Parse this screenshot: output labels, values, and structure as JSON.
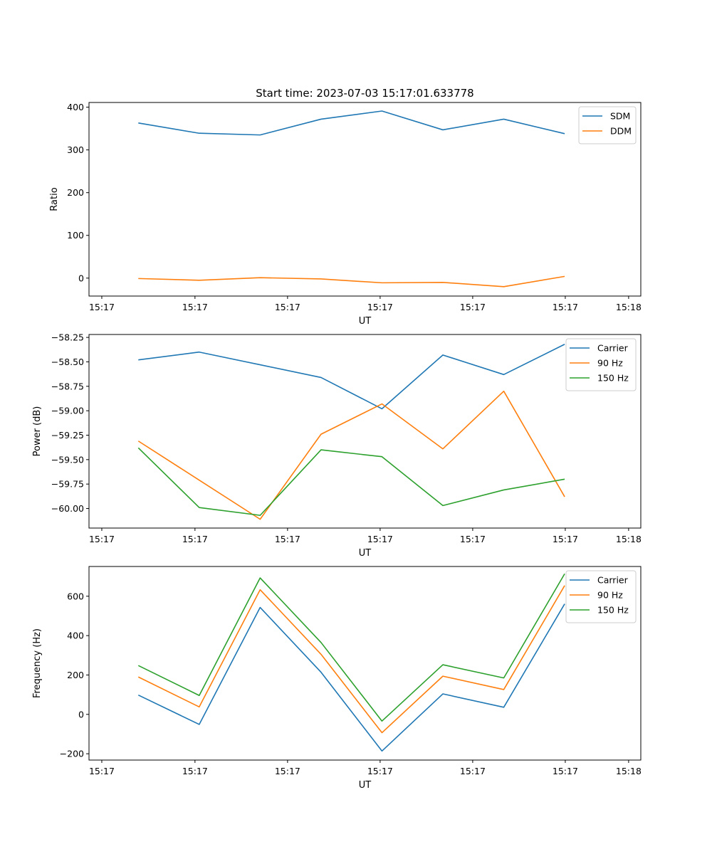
{
  "figure_title": "Start time: 2023-07-03 15:17:01.633778",
  "colors": {
    "c0": "#1f77b4",
    "c1": "#ff7f0e",
    "c2": "#2ca02c"
  },
  "chart_data": [
    {
      "type": "line",
      "title": "Start time: 2023-07-03 15:17:01.633778",
      "xlabel": "UT",
      "ylabel": "Ratio",
      "x_tick_labels": [
        "15:17",
        "15:17",
        "15:17",
        "15:17",
        "15:17",
        "15:17",
        "15:18"
      ],
      "x_index": [
        1,
        2,
        3,
        4,
        5,
        6,
        7,
        8
      ],
      "xlim": [
        0.19,
        9.25
      ],
      "ylim": [
        -42,
        411
      ],
      "yticks": [
        0,
        100,
        200,
        300,
        400
      ],
      "ytick_labels": [
        "0",
        "100",
        "200",
        "300",
        "400"
      ],
      "legend_position": "top-right",
      "series": [
        {
          "name": "SDM",
          "color": "#1f77b4",
          "values": [
            363,
            339,
            335,
            372,
            391,
            347,
            372,
            338
          ]
        },
        {
          "name": "DDM",
          "color": "#ff7f0e",
          "values": [
            -1,
            -5,
            1,
            -2,
            -11,
            -10,
            -20,
            4
          ]
        }
      ]
    },
    {
      "type": "line",
      "title": "",
      "xlabel": "UT",
      "ylabel": "Power (dB)",
      "x_tick_labels": [
        "15:17",
        "15:17",
        "15:17",
        "15:17",
        "15:17",
        "15:17",
        "15:18"
      ],
      "x_index": [
        1,
        2,
        3,
        4,
        5,
        6,
        7,
        8
      ],
      "xlim": [
        0.19,
        9.25
      ],
      "ylim": [
        -60.2,
        -58.22
      ],
      "yticks": [
        -60.0,
        -59.75,
        -59.5,
        -59.25,
        -59.0,
        -58.75,
        -58.5,
        -58.25
      ],
      "ytick_labels": [
        "−60.00",
        "−59.75",
        "−59.50",
        "−59.25",
        "−59.00",
        "−58.75",
        "−58.50",
        "−58.25"
      ],
      "legend_position": "top-right",
      "series": [
        {
          "name": "Carrier",
          "color": "#1f77b4",
          "values": [
            -58.48,
            -58.4,
            -58.53,
            -58.66,
            -58.98,
            -58.43,
            -58.63,
            -58.32
          ]
        },
        {
          "name": "90 Hz",
          "color": "#ff7f0e",
          "values": [
            -59.31,
            -59.71,
            -60.11,
            -59.24,
            -58.93,
            -59.39,
            -58.8,
            -59.88
          ]
        },
        {
          "name": "150 Hz",
          "color": "#2ca02c",
          "values": [
            -59.38,
            -59.99,
            -60.07,
            -59.4,
            -59.47,
            -59.97,
            -59.81,
            -59.7
          ]
        }
      ]
    },
    {
      "type": "line",
      "title": "",
      "xlabel": "UT",
      "ylabel": "Frequency (Hz)",
      "x_tick_labels": [
        "15:17",
        "15:17",
        "15:17",
        "15:17",
        "15:17",
        "15:17",
        "15:18"
      ],
      "x_index": [
        1,
        2,
        3,
        4,
        5,
        6,
        7,
        8
      ],
      "xlim": [
        0.19,
        9.25
      ],
      "ylim": [
        -232,
        751
      ],
      "yticks": [
        -200,
        0,
        200,
        400,
        600
      ],
      "ytick_labels": [
        "−200",
        "0",
        "200",
        "400",
        "600"
      ],
      "legend_position": "top-right",
      "series": [
        {
          "name": "Carrier",
          "color": "#1f77b4",
          "values": [
            98,
            -51,
            543,
            214,
            -186,
            104,
            36,
            561
          ]
        },
        {
          "name": "90 Hz",
          "color": "#ff7f0e",
          "values": [
            190,
            38,
            633,
            305,
            -93,
            194,
            126,
            654
          ]
        },
        {
          "name": "150 Hz",
          "color": "#2ca02c",
          "values": [
            248,
            96,
            693,
            365,
            -34,
            252,
            185,
            714
          ]
        }
      ]
    }
  ]
}
